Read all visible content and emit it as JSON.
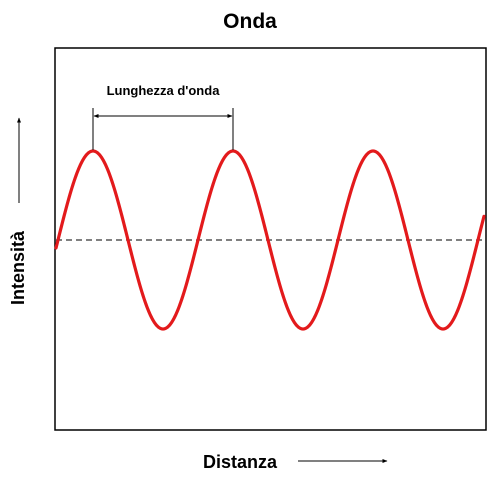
{
  "title": "Onda",
  "wavelength_label": "Lunghezza d'onda",
  "x_axis_label": "Distanza",
  "y_axis_label": "Intensità",
  "wave": {
    "shape": "sine",
    "crests_shown": 3,
    "troughs_shown": 3,
    "color": "#e31a1c",
    "baseline": "dashed"
  },
  "colors": {
    "wave": "#e31a1c",
    "frame": "#000000",
    "baseline": "#000000"
  }
}
